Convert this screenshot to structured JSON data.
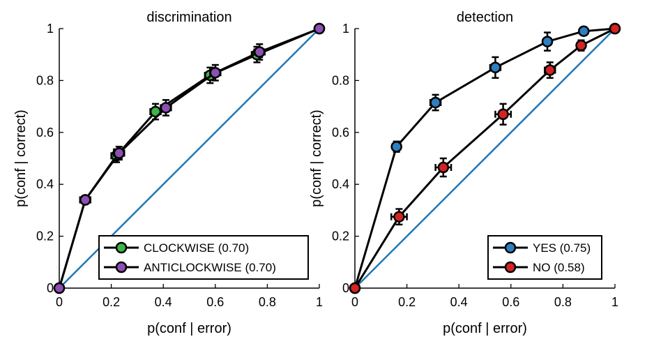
{
  "chart_data": [
    {
      "type": "line",
      "title": "discrimination",
      "xlabel": "p(conf | error)",
      "ylabel": "p(conf | correct)",
      "xlim": [
        0,
        1
      ],
      "ylim": [
        0,
        1
      ],
      "xticks": [
        "0",
        "0.2",
        "0.4",
        "0.6",
        "0.8",
        "1"
      ],
      "yticks": [
        "0",
        "0.2",
        "0.4",
        "0.6",
        "0.8",
        "1"
      ],
      "grid": false,
      "legend_position": "bottom-right",
      "diagonal_color": "#1f77b4",
      "series": [
        {
          "name": "CLOCKWISE (0.70)",
          "color": "#3cb54a",
          "x": [
            0,
            0.1,
            0.22,
            0.37,
            0.58,
            0.76,
            1
          ],
          "y": [
            0,
            0.34,
            0.51,
            0.68,
            0.82,
            0.9,
            1
          ],
          "xerr": [
            0,
            0.02,
            0.02,
            0.02,
            0.02,
            0.02,
            0
          ],
          "yerr": [
            0,
            0.01,
            0.025,
            0.03,
            0.03,
            0.03,
            0
          ]
        },
        {
          "name": "ANTICLOCKWISE (0.70)",
          "color": "#8e4fb4",
          "x": [
            0,
            0.1,
            0.23,
            0.41,
            0.6,
            0.77,
            1
          ],
          "y": [
            0,
            0.34,
            0.52,
            0.695,
            0.83,
            0.91,
            1
          ],
          "xerr": [
            0,
            0.02,
            0.02,
            0.02,
            0.02,
            0.02,
            0
          ],
          "yerr": [
            0,
            0.01,
            0.025,
            0.03,
            0.03,
            0.03,
            0
          ]
        }
      ]
    },
    {
      "type": "line",
      "title": "detection",
      "xlabel": "p(conf | error)",
      "ylabel": "p(conf | correct)",
      "xlim": [
        0,
        1
      ],
      "ylim": [
        0,
        1
      ],
      "xticks": [
        "0",
        "0.2",
        "0.4",
        "0.6",
        "0.8",
        "1"
      ],
      "yticks": [
        "0",
        "0.2",
        "0.4",
        "0.6",
        "0.8",
        "1"
      ],
      "grid": false,
      "legend_position": "bottom-right",
      "diagonal_color": "#1f77b4",
      "series": [
        {
          "name": "YES (0.75)",
          "color": "#2c7fc1",
          "x": [
            0,
            0.16,
            0.31,
            0.54,
            0.74,
            0.88,
            1
          ],
          "y": [
            0,
            0.545,
            0.715,
            0.85,
            0.95,
            0.99,
            1
          ],
          "xerr": [
            0,
            0.015,
            0.02,
            0.02,
            0.015,
            0.01,
            0
          ],
          "yerr": [
            0,
            0.02,
            0.03,
            0.04,
            0.035,
            0.015,
            0
          ]
        },
        {
          "name": "NO (0.58)",
          "color": "#d42323",
          "x": [
            0,
            0.17,
            0.34,
            0.57,
            0.75,
            0.87,
            1
          ],
          "y": [
            0,
            0.275,
            0.465,
            0.67,
            0.84,
            0.935,
            1
          ],
          "xerr": [
            0,
            0.03,
            0.03,
            0.03,
            0.02,
            0.01,
            0
          ],
          "yerr": [
            0,
            0.03,
            0.035,
            0.04,
            0.03,
            0.02,
            0
          ]
        }
      ]
    }
  ]
}
